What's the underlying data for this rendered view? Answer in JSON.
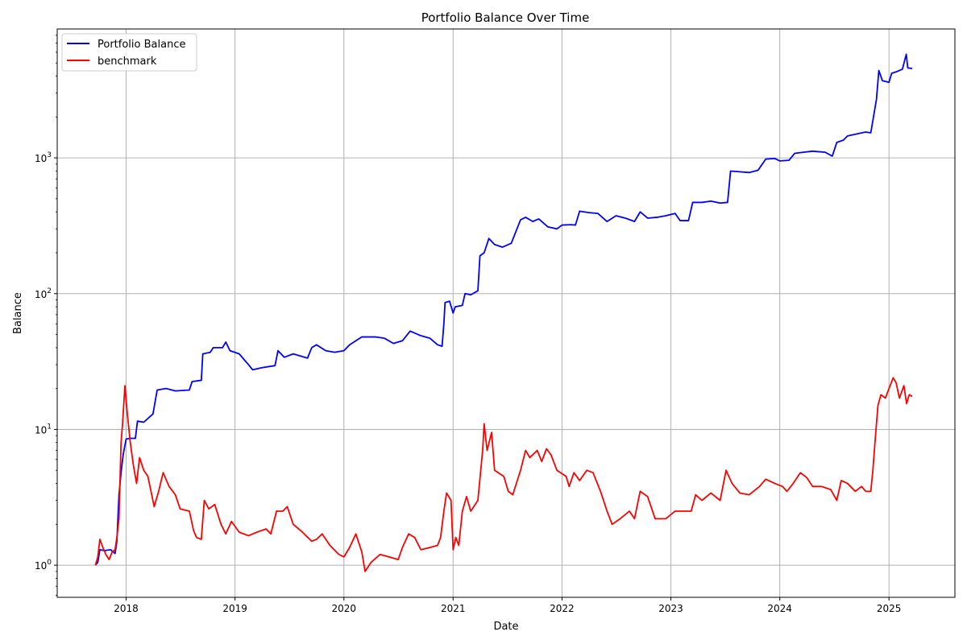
{
  "chart_data": {
    "type": "line",
    "title": "Portfolio Balance Over Time",
    "xlabel": "Date",
    "ylabel": "Balance",
    "y_scale": "log",
    "xlim": [
      "2017-05-15",
      "2025-08-10"
    ],
    "ylim": [
      0.58,
      8900
    ],
    "grid": true,
    "legend_position": "top-left",
    "x_ticks": [
      "2018",
      "2019",
      "2020",
      "2021",
      "2022",
      "2023",
      "2024",
      "2025"
    ],
    "y_ticks": [
      {
        "value": 1,
        "base": "10",
        "exp": "0"
      },
      {
        "value": 10,
        "base": "10",
        "exp": "1"
      },
      {
        "value": 100,
        "base": "10",
        "exp": "2"
      },
      {
        "value": 1000,
        "base": "10",
        "exp": "3"
      }
    ],
    "series": [
      {
        "name": "Portfolio Balance",
        "color": "#0000ff",
        "points": [
          [
            "2017-09-20",
            1.0
          ],
          [
            "2017-09-28",
            1.05
          ],
          [
            "2017-10-05",
            1.3
          ],
          [
            "2017-10-20",
            1.28
          ],
          [
            "2017-11-10",
            1.3
          ],
          [
            "2017-11-25",
            1.22
          ],
          [
            "2017-12-01",
            1.5
          ],
          [
            "2017-12-08",
            3.3
          ],
          [
            "2017-12-15",
            4.8
          ],
          [
            "2017-12-22",
            6.5
          ],
          [
            "2018-01-01",
            8.5
          ],
          [
            "2018-01-15",
            8.6
          ],
          [
            "2018-02-01",
            8.6
          ],
          [
            "2018-02-08",
            11.5
          ],
          [
            "2018-03-01",
            11.3
          ],
          [
            "2018-04-01",
            13.0
          ],
          [
            "2018-04-15",
            19.5
          ],
          [
            "2018-05-15",
            20.0
          ],
          [
            "2018-06-15",
            19.2
          ],
          [
            "2018-08-01",
            19.5
          ],
          [
            "2018-08-10",
            22.5
          ],
          [
            "2018-09-10",
            23.0
          ],
          [
            "2018-09-15",
            36.0
          ],
          [
            "2018-10-10",
            37.0
          ],
          [
            "2018-10-20",
            40.0
          ],
          [
            "2018-11-20",
            40.0
          ],
          [
            "2018-12-01",
            44.0
          ],
          [
            "2018-12-15",
            38.0
          ],
          [
            "2019-01-15",
            36.0
          ],
          [
            "2019-02-15",
            30.0
          ],
          [
            "2019-03-01",
            27.5
          ],
          [
            "2019-04-01",
            28.5
          ],
          [
            "2019-05-15",
            29.5
          ],
          [
            "2019-05-25",
            38.0
          ],
          [
            "2019-06-15",
            34.0
          ],
          [
            "2019-07-15",
            36.0
          ],
          [
            "2019-09-01",
            33.5
          ],
          [
            "2019-09-15",
            40.0
          ],
          [
            "2019-10-01",
            42.0
          ],
          [
            "2019-11-01",
            38.0
          ],
          [
            "2019-12-01",
            37.0
          ],
          [
            "2020-01-01",
            38.0
          ],
          [
            "2020-01-20",
            42.0
          ],
          [
            "2020-03-01",
            48.0
          ],
          [
            "2020-04-15",
            48.0
          ],
          [
            "2020-05-15",
            47.0
          ],
          [
            "2020-06-15",
            43.0
          ],
          [
            "2020-07-15",
            45.0
          ],
          [
            "2020-08-10",
            53.0
          ],
          [
            "2020-09-15",
            49.0
          ],
          [
            "2020-10-15",
            47.0
          ],
          [
            "2020-11-10",
            42.0
          ],
          [
            "2020-11-25",
            41.0
          ],
          [
            "2020-12-01",
            60.0
          ],
          [
            "2020-12-05",
            86.0
          ],
          [
            "2020-12-20",
            88.0
          ],
          [
            "2021-01-01",
            72.0
          ],
          [
            "2021-01-08",
            80.0
          ],
          [
            "2021-02-01",
            82.0
          ],
          [
            "2021-02-10",
            100.0
          ],
          [
            "2021-03-01",
            98.0
          ],
          [
            "2021-03-25",
            105.0
          ],
          [
            "2021-04-01",
            190.0
          ],
          [
            "2021-04-15",
            200.0
          ],
          [
            "2021-05-01",
            255.0
          ],
          [
            "2021-05-20",
            230.0
          ],
          [
            "2021-06-15",
            220.0
          ],
          [
            "2021-07-15",
            235.0
          ],
          [
            "2021-08-15",
            350.0
          ],
          [
            "2021-09-01",
            365.0
          ],
          [
            "2021-09-25",
            340.0
          ],
          [
            "2021-10-15",
            355.0
          ],
          [
            "2021-11-15",
            310.0
          ],
          [
            "2021-12-15",
            300.0
          ],
          [
            "2022-01-01",
            320.0
          ],
          [
            "2022-02-01",
            322.0
          ],
          [
            "2022-02-15",
            320.0
          ],
          [
            "2022-03-01",
            405.0
          ],
          [
            "2022-04-01",
            395.0
          ],
          [
            "2022-05-01",
            390.0
          ],
          [
            "2022-06-01",
            340.0
          ],
          [
            "2022-07-01",
            375.0
          ],
          [
            "2022-08-01",
            360.0
          ],
          [
            "2022-09-01",
            340.0
          ],
          [
            "2022-09-20",
            400.0
          ],
          [
            "2022-10-15",
            360.0
          ],
          [
            "2022-11-15",
            365.0
          ],
          [
            "2022-12-15",
            375.0
          ],
          [
            "2023-01-15",
            390.0
          ],
          [
            "2023-02-01",
            345.0
          ],
          [
            "2023-03-01",
            345.0
          ],
          [
            "2023-03-15",
            470.0
          ],
          [
            "2023-04-15",
            470.0
          ],
          [
            "2023-05-15",
            480.0
          ],
          [
            "2023-06-15",
            465.0
          ],
          [
            "2023-07-10",
            470.0
          ],
          [
            "2023-07-20",
            800.0
          ],
          [
            "2023-08-20",
            790.0
          ],
          [
            "2023-09-20",
            780.0
          ],
          [
            "2023-10-20",
            810.0
          ],
          [
            "2023-11-15",
            980.0
          ],
          [
            "2023-12-15",
            990.0
          ],
          [
            "2024-01-01",
            950.0
          ],
          [
            "2024-02-01",
            960.0
          ],
          [
            "2024-02-20",
            1080.0
          ],
          [
            "2024-03-20",
            1100.0
          ],
          [
            "2024-04-20",
            1120.0
          ],
          [
            "2024-06-01",
            1100.0
          ],
          [
            "2024-06-25",
            1030.0
          ],
          [
            "2024-07-10",
            1300.0
          ],
          [
            "2024-08-01",
            1350.0
          ],
          [
            "2024-08-15",
            1450.0
          ],
          [
            "2024-09-15",
            1500.0
          ],
          [
            "2024-10-15",
            1550.0
          ],
          [
            "2024-11-01",
            1530.0
          ],
          [
            "2024-11-10",
            2000.0
          ],
          [
            "2024-11-20",
            2700.0
          ],
          [
            "2024-11-28",
            4400.0
          ],
          [
            "2024-12-10",
            3700.0
          ],
          [
            "2025-01-01",
            3600.0
          ],
          [
            "2025-01-10",
            4200.0
          ],
          [
            "2025-01-25",
            4300.0
          ],
          [
            "2025-02-15",
            4500.0
          ],
          [
            "2025-02-28",
            5800.0
          ],
          [
            "2025-03-05",
            4600.0
          ],
          [
            "2025-03-20",
            4550.0
          ]
        ]
      },
      {
        "name": "benchmark",
        "color": "#ff0000",
        "points": [
          [
            "2017-09-20",
            1.0
          ],
          [
            "2017-09-28",
            1.15
          ],
          [
            "2017-10-05",
            1.55
          ],
          [
            "2017-10-15",
            1.35
          ],
          [
            "2017-10-25",
            1.2
          ],
          [
            "2017-11-05",
            1.1
          ],
          [
            "2017-11-15",
            1.25
          ],
          [
            "2017-11-25",
            1.3
          ],
          [
            "2017-12-01",
            1.6
          ],
          [
            "2017-12-08",
            2.2
          ],
          [
            "2017-12-15",
            8.0
          ],
          [
            "2017-12-20",
            11.0
          ],
          [
            "2017-12-28",
            21.0
          ],
          [
            "2018-01-05",
            13.0
          ],
          [
            "2018-01-15",
            8.0
          ],
          [
            "2018-01-25",
            5.5
          ],
          [
            "2018-02-05",
            4.0
          ],
          [
            "2018-02-15",
            6.2
          ],
          [
            "2018-03-01",
            5.0
          ],
          [
            "2018-03-15",
            4.5
          ],
          [
            "2018-04-05",
            2.7
          ],
          [
            "2018-04-20",
            3.5
          ],
          [
            "2018-05-05",
            4.8
          ],
          [
            "2018-05-25",
            3.8
          ],
          [
            "2018-06-15",
            3.3
          ],
          [
            "2018-07-01",
            2.6
          ],
          [
            "2018-08-01",
            2.5
          ],
          [
            "2018-08-15",
            1.8
          ],
          [
            "2018-08-25",
            1.6
          ],
          [
            "2018-09-10",
            1.55
          ],
          [
            "2018-09-20",
            3.0
          ],
          [
            "2018-10-05",
            2.6
          ],
          [
            "2018-10-25",
            2.8
          ],
          [
            "2018-11-15",
            2.0
          ],
          [
            "2018-12-01",
            1.7
          ],
          [
            "2018-12-20",
            2.1
          ],
          [
            "2019-01-15",
            1.75
          ],
          [
            "2019-02-15",
            1.65
          ],
          [
            "2019-03-15",
            1.75
          ],
          [
            "2019-04-15",
            1.85
          ],
          [
            "2019-05-01",
            1.7
          ],
          [
            "2019-05-20",
            2.5
          ],
          [
            "2019-06-10",
            2.5
          ],
          [
            "2019-06-25",
            2.7
          ],
          [
            "2019-07-15",
            2.0
          ],
          [
            "2019-08-15",
            1.75
          ],
          [
            "2019-09-15",
            1.5
          ],
          [
            "2019-10-01",
            1.55
          ],
          [
            "2019-10-20",
            1.7
          ],
          [
            "2019-11-15",
            1.4
          ],
          [
            "2019-12-15",
            1.2
          ],
          [
            "2020-01-01",
            1.15
          ],
          [
            "2020-01-20",
            1.35
          ],
          [
            "2020-02-10",
            1.7
          ],
          [
            "2020-03-01",
            1.25
          ],
          [
            "2020-03-12",
            0.9
          ],
          [
            "2020-04-01",
            1.05
          ],
          [
            "2020-05-01",
            1.2
          ],
          [
            "2020-06-01",
            1.15
          ],
          [
            "2020-07-01",
            1.1
          ],
          [
            "2020-07-15",
            1.35
          ],
          [
            "2020-08-05",
            1.7
          ],
          [
            "2020-08-25",
            1.6
          ],
          [
            "2020-09-15",
            1.3
          ],
          [
            "2020-10-15",
            1.35
          ],
          [
            "2020-11-10",
            1.4
          ],
          [
            "2020-11-20",
            1.6
          ],
          [
            "2020-12-01",
            2.5
          ],
          [
            "2020-12-10",
            3.4
          ],
          [
            "2020-12-25",
            3.0
          ],
          [
            "2021-01-01",
            1.3
          ],
          [
            "2021-01-10",
            1.6
          ],
          [
            "2021-01-20",
            1.4
          ],
          [
            "2021-02-01",
            2.5
          ],
          [
            "2021-02-15",
            3.2
          ],
          [
            "2021-03-01",
            2.5
          ],
          [
            "2021-03-25",
            3.0
          ],
          [
            "2021-04-10",
            7.0
          ],
          [
            "2021-04-15",
            11.0
          ],
          [
            "2021-04-25",
            7.0
          ],
          [
            "2021-05-10",
            9.5
          ],
          [
            "2021-05-20",
            5.0
          ],
          [
            "2021-06-20",
            4.5
          ],
          [
            "2021-07-05",
            3.5
          ],
          [
            "2021-07-20",
            3.3
          ],
          [
            "2021-08-15",
            5.0
          ],
          [
            "2021-09-01",
            7.0
          ],
          [
            "2021-09-15",
            6.2
          ],
          [
            "2021-10-10",
            7.0
          ],
          [
            "2021-10-25",
            5.8
          ],
          [
            "2021-11-10",
            7.2
          ],
          [
            "2021-11-25",
            6.5
          ],
          [
            "2021-12-15",
            5.0
          ],
          [
            "2022-01-15",
            4.5
          ],
          [
            "2022-01-25",
            3.8
          ],
          [
            "2022-02-10",
            4.8
          ],
          [
            "2022-03-01",
            4.2
          ],
          [
            "2022-03-25",
            5.0
          ],
          [
            "2022-04-15",
            4.8
          ],
          [
            "2022-05-10",
            3.5
          ],
          [
            "2022-06-01",
            2.5
          ],
          [
            "2022-06-18",
            2.0
          ],
          [
            "2022-07-15",
            2.2
          ],
          [
            "2022-08-15",
            2.5
          ],
          [
            "2022-09-01",
            2.2
          ],
          [
            "2022-09-20",
            3.5
          ],
          [
            "2022-10-15",
            3.2
          ],
          [
            "2022-11-09",
            2.2
          ],
          [
            "2022-12-15",
            2.2
          ],
          [
            "2023-01-15",
            2.5
          ],
          [
            "2023-02-15",
            2.5
          ],
          [
            "2023-03-10",
            2.5
          ],
          [
            "2023-03-25",
            3.3
          ],
          [
            "2023-04-15",
            3.0
          ],
          [
            "2023-05-15",
            3.4
          ],
          [
            "2023-06-15",
            3.0
          ],
          [
            "2023-07-05",
            5.0
          ],
          [
            "2023-07-25",
            4.0
          ],
          [
            "2023-08-20",
            3.4
          ],
          [
            "2023-09-20",
            3.3
          ],
          [
            "2023-10-25",
            3.8
          ],
          [
            "2023-11-15",
            4.3
          ],
          [
            "2023-12-15",
            4.0
          ],
          [
            "2024-01-10",
            3.8
          ],
          [
            "2024-01-25",
            3.5
          ],
          [
            "2024-02-15",
            4.0
          ],
          [
            "2024-03-10",
            4.8
          ],
          [
            "2024-04-01",
            4.4
          ],
          [
            "2024-04-20",
            3.8
          ],
          [
            "2024-05-20",
            3.8
          ],
          [
            "2024-06-20",
            3.6
          ],
          [
            "2024-07-10",
            3.0
          ],
          [
            "2024-07-25",
            4.2
          ],
          [
            "2024-08-15",
            4.0
          ],
          [
            "2024-09-10",
            3.5
          ],
          [
            "2024-10-01",
            3.8
          ],
          [
            "2024-10-15",
            3.5
          ],
          [
            "2024-11-01",
            3.5
          ],
          [
            "2024-11-08",
            5.0
          ],
          [
            "2024-11-15",
            8.0
          ],
          [
            "2024-11-25",
            15.0
          ],
          [
            "2024-12-05",
            18.0
          ],
          [
            "2024-12-20",
            17.0
          ],
          [
            "2025-01-01",
            20.0
          ],
          [
            "2025-01-15",
            24.0
          ],
          [
            "2025-01-25",
            22.0
          ],
          [
            "2025-02-05",
            17.0
          ],
          [
            "2025-02-20",
            21.0
          ],
          [
            "2025-03-01",
            15.5
          ],
          [
            "2025-03-10",
            18.0
          ],
          [
            "2025-03-20",
            17.5
          ]
        ]
      }
    ]
  }
}
